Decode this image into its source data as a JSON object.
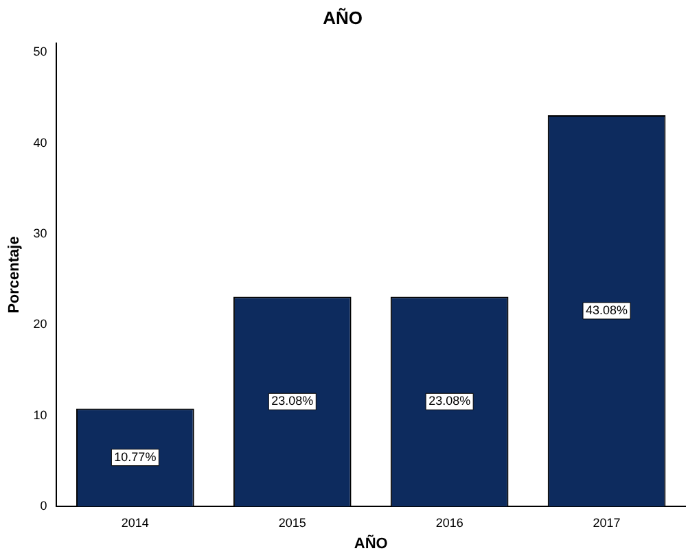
{
  "chart_data": {
    "type": "bar",
    "title": "AÑO",
    "xlabel": "AÑO",
    "ylabel": "Porcentaje",
    "categories": [
      "2014",
      "2015",
      "2016",
      "2017"
    ],
    "values": [
      10.77,
      23.08,
      23.08,
      43.08
    ],
    "value_labels": [
      "10.77%",
      "23.08%",
      "23.08%",
      "43.08%"
    ],
    "color": "#0d2b5e",
    "ylim": [
      0,
      51
    ],
    "yticks": [
      0,
      10,
      20,
      30,
      40,
      50
    ],
    "grid": false,
    "legend": false
  }
}
